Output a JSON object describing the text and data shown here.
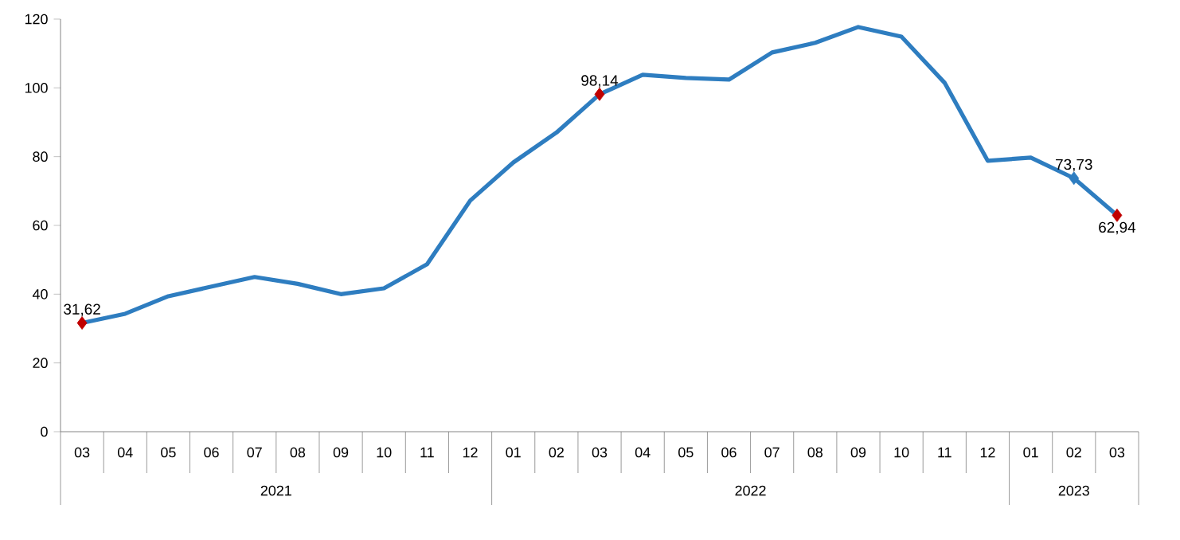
{
  "chart_data": {
    "type": "line",
    "categories": [
      "03",
      "04",
      "05",
      "06",
      "07",
      "08",
      "09",
      "10",
      "11",
      "12",
      "01",
      "02",
      "03",
      "04",
      "05",
      "06",
      "07",
      "08",
      "09",
      "10",
      "11",
      "12",
      "01",
      "02",
      "03"
    ],
    "series": [
      {
        "type": "line",
        "color": "#2e7dc0",
        "values": [
          31.62,
          34.3,
          39.4,
          42.2,
          45.0,
          43.0,
          40.0,
          41.7,
          48.7,
          67.2,
          78.3,
          87.0,
          98.14,
          103.8,
          102.9,
          102.4,
          110.3,
          113.1,
          117.7,
          114.9,
          101.5,
          78.8,
          79.7,
          73.73,
          62.94
        ],
        "value_labels": [
          "31,62",
          null,
          null,
          null,
          null,
          null,
          null,
          null,
          null,
          null,
          null,
          null,
          "98,14",
          null,
          null,
          null,
          null,
          null,
          null,
          null,
          null,
          null,
          null,
          "73,73",
          "62,94"
        ]
      },
      {
        "type": "scatter",
        "color": "#c00000",
        "marker": "diamond",
        "values": [
          31.62,
          null,
          null,
          null,
          null,
          null,
          null,
          null,
          null,
          null,
          null,
          null,
          98.14,
          null,
          null,
          null,
          null,
          null,
          null,
          null,
          null,
          null,
          null,
          null,
          62.94
        ]
      },
      {
        "type": "scatter",
        "color": "#2e7dc0",
        "marker": "diamond",
        "values": [
          null,
          null,
          null,
          null,
          null,
          null,
          null,
          null,
          null,
          null,
          null,
          null,
          null,
          null,
          null,
          null,
          null,
          null,
          null,
          null,
          null,
          null,
          null,
          73.73,
          null
        ]
      }
    ],
    "ylim": [
      0,
      120
    ],
    "yticks": [
      0,
      20,
      40,
      60,
      80,
      100,
      120
    ],
    "annotations": [
      "2021",
      "2022",
      "2023"
    ]
  }
}
